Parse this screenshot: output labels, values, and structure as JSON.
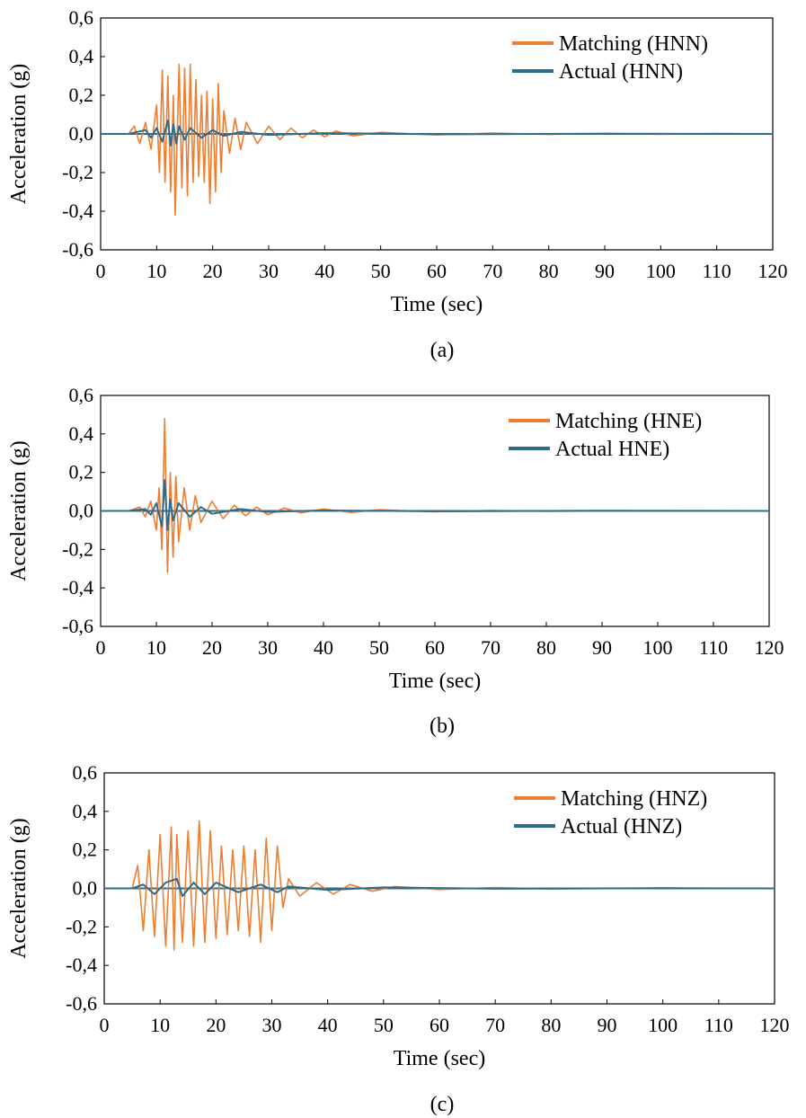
{
  "chart_data": [
    {
      "type": "line",
      "caption": "(a)",
      "xlabel": "Time (sec)",
      "ylabel": "Acceleration (g)",
      "xlim": [
        0,
        120
      ],
      "ylim": [
        -0.6,
        0.6
      ],
      "x_ticks": [
        0,
        10,
        20,
        30,
        40,
        50,
        60,
        70,
        80,
        90,
        100,
        110,
        120
      ],
      "y_ticks": [
        "0,6",
        "0,4",
        "0,2",
        "0,0",
        "-0,2",
        "-0,4",
        "-0,6"
      ],
      "grid": false,
      "legend_position": "top-right",
      "series": [
        {
          "name": "Matching (HNN)",
          "color": "#ed7d31",
          "points": [
            [
              5,
              0
            ],
            [
              6,
              0.04
            ],
            [
              7,
              -0.05
            ],
            [
              8,
              0.06
            ],
            [
              9,
              -0.08
            ],
            [
              10,
              0.15
            ],
            [
              10.5,
              -0.2
            ],
            [
              11,
              0.33
            ],
            [
              11.5,
              -0.25
            ],
            [
              12,
              0.3
            ],
            [
              12.5,
              -0.3
            ],
            [
              13,
              0.2
            ],
            [
              13.3,
              -0.42
            ],
            [
              14,
              0.36
            ],
            [
              14.5,
              -0.28
            ],
            [
              15,
              0.34
            ],
            [
              15.5,
              -0.32
            ],
            [
              16,
              0.36
            ],
            [
              16.5,
              -0.25
            ],
            [
              17,
              0.28
            ],
            [
              17.5,
              -0.22
            ],
            [
              18,
              0.2
            ],
            [
              18.5,
              -0.25
            ],
            [
              19,
              0.22
            ],
            [
              19.5,
              -0.36
            ],
            [
              20,
              0.18
            ],
            [
              20.5,
              -0.3
            ],
            [
              21,
              0.26
            ],
            [
              21.5,
              -0.2
            ],
            [
              22,
              0.12
            ],
            [
              23,
              -0.1
            ],
            [
              24,
              0.08
            ],
            [
              25,
              -0.08
            ],
            [
              26,
              0.06
            ],
            [
              28,
              -0.05
            ],
            [
              30,
              0.04
            ],
            [
              32,
              -0.03
            ],
            [
              34,
              0.03
            ],
            [
              36,
              -0.02
            ],
            [
              38,
              0.02
            ],
            [
              40,
              -0.015
            ],
            [
              42,
              0.015
            ],
            [
              45,
              -0.01
            ],
            [
              50,
              0.008
            ],
            [
              60,
              -0.005
            ],
            [
              70,
              0.004
            ],
            [
              80,
              -0.003
            ],
            [
              90,
              0.003
            ],
            [
              100,
              -0.002
            ],
            [
              110,
              0.002
            ],
            [
              120,
              0
            ]
          ]
        },
        {
          "name": "Actual (HNN)",
          "color": "#2e6c8a",
          "points": [
            [
              5,
              0
            ],
            [
              8,
              0.02
            ],
            [
              9,
              -0.02
            ],
            [
              10,
              0.03
            ],
            [
              11,
              -0.04
            ],
            [
              12,
              0.07
            ],
            [
              12.5,
              -0.06
            ],
            [
              13,
              0.05
            ],
            [
              13.5,
              -0.05
            ],
            [
              14,
              0.04
            ],
            [
              15,
              -0.03
            ],
            [
              16,
              0.03
            ],
            [
              18,
              -0.02
            ],
            [
              20,
              0.02
            ],
            [
              22,
              -0.01
            ],
            [
              25,
              0.01
            ],
            [
              30,
              -0.005
            ],
            [
              40,
              0.004
            ],
            [
              60,
              -0.002
            ],
            [
              90,
              0.001
            ],
            [
              120,
              0
            ]
          ]
        }
      ]
    },
    {
      "type": "line",
      "caption": "(b)",
      "xlabel": "Time (sec)",
      "ylabel": "Acceleration (g)",
      "xlim": [
        0,
        120
      ],
      "ylim": [
        -0.6,
        0.6
      ],
      "x_ticks": [
        0,
        10,
        20,
        30,
        40,
        50,
        60,
        70,
        80,
        90,
        100,
        110,
        120
      ],
      "y_ticks": [
        "0,6",
        "0,4",
        "0,2",
        "0,0",
        "-0,2",
        "-0,4",
        "-0,6"
      ],
      "grid": false,
      "legend_position": "top-right",
      "series": [
        {
          "name": "Matching (HNE)",
          "color": "#ed7d31",
          "points": [
            [
              5,
              0
            ],
            [
              7,
              0.02
            ],
            [
              8,
              -0.03
            ],
            [
              9,
              0.05
            ],
            [
              10,
              -0.1
            ],
            [
              10.5,
              0.12
            ],
            [
              11,
              -0.2
            ],
            [
              11.5,
              0.48
            ],
            [
              12,
              -0.32
            ],
            [
              12.5,
              0.2
            ],
            [
              13,
              -0.24
            ],
            [
              13.5,
              0.18
            ],
            [
              14,
              -0.16
            ],
            [
              15,
              0.12
            ],
            [
              16,
              -0.1
            ],
            [
              17,
              0.08
            ],
            [
              18,
              -0.06
            ],
            [
              20,
              0.05
            ],
            [
              22,
              -0.04
            ],
            [
              24,
              0.03
            ],
            [
              26,
              -0.025
            ],
            [
              28,
              0.02
            ],
            [
              30,
              -0.02
            ],
            [
              33,
              0.015
            ],
            [
              36,
              -0.01
            ],
            [
              40,
              0.01
            ],
            [
              45,
              -0.008
            ],
            [
              50,
              0.006
            ],
            [
              60,
              -0.004
            ],
            [
              70,
              0.003
            ],
            [
              80,
              -0.002
            ],
            [
              100,
              0.001
            ],
            [
              120,
              0
            ]
          ]
        },
        {
          "name": "Actual HNE)",
          "color": "#2e6c8a",
          "points": [
            [
              5,
              0
            ],
            [
              8,
              0.01
            ],
            [
              9,
              -0.02
            ],
            [
              10,
              0.04
            ],
            [
              11,
              -0.08
            ],
            [
              11.5,
              0.16
            ],
            [
              12,
              -0.1
            ],
            [
              12.5,
              0.06
            ],
            [
              13,
              -0.05
            ],
            [
              14,
              0.04
            ],
            [
              16,
              -0.03
            ],
            [
              18,
              0.02
            ],
            [
              20,
              -0.015
            ],
            [
              25,
              0.01
            ],
            [
              30,
              -0.005
            ],
            [
              40,
              0.003
            ],
            [
              60,
              -0.002
            ],
            [
              90,
              0.001
            ],
            [
              120,
              0
            ]
          ]
        }
      ]
    },
    {
      "type": "line",
      "caption": "(c)",
      "xlabel": "Time (sec)",
      "ylabel": "Acceleration (g)",
      "xlim": [
        0,
        120
      ],
      "ylim": [
        -0.6,
        0.6
      ],
      "x_ticks": [
        0,
        10,
        20,
        30,
        40,
        50,
        60,
        70,
        80,
        90,
        100,
        110,
        120
      ],
      "y_ticks": [
        "0,6",
        "0,4",
        "0,2",
        "0,0",
        "-0,2",
        "-0,4",
        "-0,6"
      ],
      "grid": false,
      "legend_position": "top-right",
      "series": [
        {
          "name": "Matching (HNZ)",
          "color": "#ed7d31",
          "points": [
            [
              5,
              0
            ],
            [
              6,
              0.12
            ],
            [
              7,
              -0.22
            ],
            [
              8,
              0.2
            ],
            [
              9,
              -0.25
            ],
            [
              10,
              0.28
            ],
            [
              11,
              -0.3
            ],
            [
              12,
              0.32
            ],
            [
              12.5,
              -0.32
            ],
            [
              13,
              0.28
            ],
            [
              14,
              -0.28
            ],
            [
              15,
              0.3
            ],
            [
              16,
              -0.3
            ],
            [
              17,
              0.35
            ],
            [
              18,
              -0.28
            ],
            [
              19,
              0.3
            ],
            [
              20,
              -0.26
            ],
            [
              21,
              0.22
            ],
            [
              22,
              -0.24
            ],
            [
              23,
              0.2
            ],
            [
              24,
              -0.22
            ],
            [
              25,
              0.22
            ],
            [
              26,
              -0.25
            ],
            [
              27,
              0.2
            ],
            [
              28,
              -0.28
            ],
            [
              29,
              0.26
            ],
            [
              30,
              -0.22
            ],
            [
              31,
              0.22
            ],
            [
              32,
              -0.1
            ],
            [
              33,
              0.05
            ],
            [
              35,
              -0.04
            ],
            [
              38,
              0.03
            ],
            [
              41,
              -0.03
            ],
            [
              44,
              0.02
            ],
            [
              48,
              -0.015
            ],
            [
              52,
              0.01
            ],
            [
              60,
              -0.006
            ],
            [
              70,
              0.004
            ],
            [
              80,
              -0.003
            ],
            [
              100,
              0.002
            ],
            [
              120,
              0
            ]
          ]
        },
        {
          "name": "Actual (HNZ)",
          "color": "#2e6c8a",
          "points": [
            [
              5,
              0
            ],
            [
              7,
              0.02
            ],
            [
              9,
              -0.03
            ],
            [
              11,
              0.03
            ],
            [
              13,
              0.05
            ],
            [
              14,
              -0.04
            ],
            [
              16,
              0.03
            ],
            [
              18,
              -0.03
            ],
            [
              20,
              0.03
            ],
            [
              24,
              -0.02
            ],
            [
              28,
              0.02
            ],
            [
              31,
              -0.02
            ],
            [
              33,
              0.01
            ],
            [
              40,
              -0.008
            ],
            [
              50,
              0.005
            ],
            [
              70,
              -0.002
            ],
            [
              100,
              0.001
            ],
            [
              120,
              0
            ]
          ]
        }
      ]
    }
  ]
}
